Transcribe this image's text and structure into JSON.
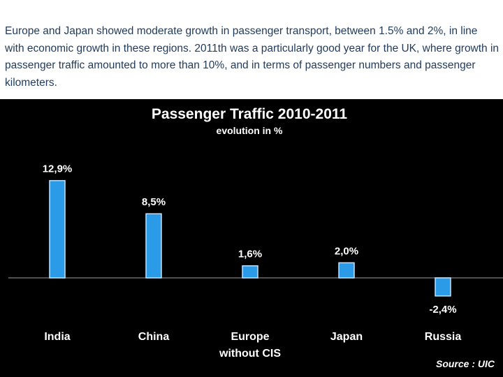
{
  "caption": "Europe and Japan showed moderate growth in passenger transport, between 1.5% and 2%, in line with economic growth in these regions. 2011th was a particularly good year for the UK, where growth in passenger traffic amounted to more than 10%, and in terms of passenger numbers and passenger kilometers.",
  "chart_data": {
    "type": "bar",
    "title": "Passenger Traffic 2010-2011",
    "subtitle": "evolution in %",
    "categories": [
      [
        "India"
      ],
      [
        "China"
      ],
      [
        "Europe",
        "without CIS"
      ],
      [
        "Japan"
      ],
      [
        "Russia"
      ]
    ],
    "values": [
      12.9,
      8.5,
      1.6,
      2.0,
      -2.4
    ],
    "value_labels": [
      "12,9%",
      "8,5%",
      "1,6%",
      "2,0%",
      "-2,4%"
    ],
    "source": "Source : UIC",
    "colors": {
      "bar": "#2b9be8",
      "bar_edge": "#bfe3ff",
      "background": "#000000",
      "baseline": "#6b6b6b",
      "text": "#ffffff"
    }
  }
}
